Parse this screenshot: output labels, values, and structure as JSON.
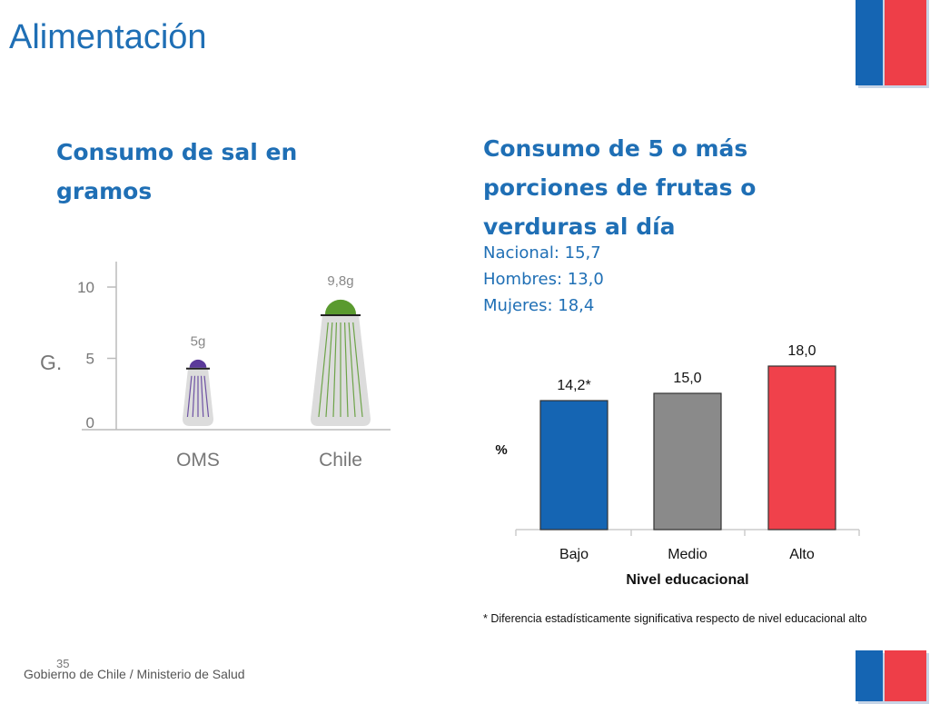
{
  "title": "Alimentación",
  "footer": {
    "text": "Gobierno de Chile / Ministerio de Salud",
    "page_number": "35"
  },
  "colors": {
    "accent": "#1f6fb5",
    "flag_blue": "#1565b3",
    "flag_red": "#ee3e48",
    "bar_bajo": "#1565b3",
    "bar_medio": "#8a8a8a",
    "bar_alto": "#f0414b",
    "oms_cap": "#5b3a9a",
    "chile_cap": "#5a9a2f"
  },
  "left_section": {
    "heading_line1": "Consumo de sal en",
    "heading_line2": "gramos"
  },
  "right_section": {
    "heading_line1": "Consumo de 5 o más",
    "heading_line2": "porciones de frutas o",
    "heading_line3": "verduras al día",
    "stats": [
      "Nacional: 15,7",
      "Hombres: 13,0",
      "Mujeres: 18,4"
    ],
    "footnote": "* Diferencia estadísticamente significativa respecto de  nivel educacional alto"
  },
  "chart_data": [
    {
      "type": "bar",
      "title": "Consumo de sal en gramos",
      "ylabel": "G.",
      "xlabel": "",
      "ylim": [
        0,
        12
      ],
      "yticks": [
        "0",
        "5",
        "10"
      ],
      "categories": [
        "OMS",
        "Chile"
      ],
      "values": [
        5,
        9.8
      ],
      "data_labels": [
        "5g",
        "9,8g"
      ]
    },
    {
      "type": "bar",
      "title": "Consumo de 5 o más porciones de frutas o verduras al día",
      "ylabel": "%",
      "xlabel": "Nivel educacional",
      "ylim": [
        0,
        19
      ],
      "categories": [
        "Bajo",
        "Medio",
        "Alto"
      ],
      "values": [
        14.2,
        15.0,
        18.0
      ],
      "data_labels": [
        "14,2*",
        "15,0",
        "18,0"
      ]
    }
  ]
}
